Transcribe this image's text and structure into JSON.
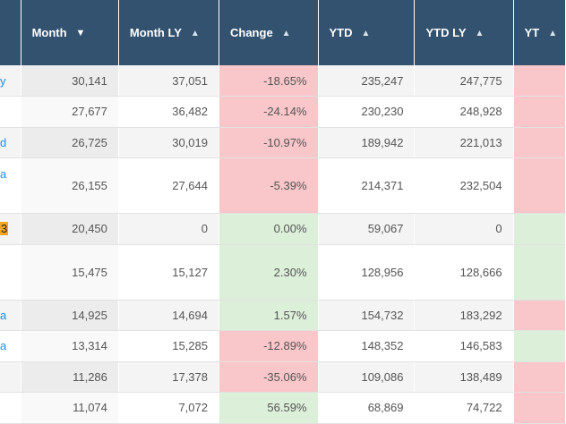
{
  "columns": [
    {
      "key": "name",
      "label": "",
      "arrow": ""
    },
    {
      "key": "month",
      "label": "Month",
      "arrow": "▼"
    },
    {
      "key": "month_ly",
      "label": "Month LY",
      "arrow": "▲"
    },
    {
      "key": "change",
      "label": "Change",
      "arrow": "▲"
    },
    {
      "key": "ytd",
      "label": "YTD",
      "arrow": "▲"
    },
    {
      "key": "ytd_ly",
      "label": "YTD LY",
      "arrow": "▲"
    },
    {
      "key": "ytd_change",
      "label": "YT",
      "arrow": "▲"
    }
  ],
  "rows": [
    {
      "name": "y",
      "month": "30,141",
      "month_ly": "37,051",
      "change": "-18.65%",
      "ytd": "235,247",
      "ytd_ly": "247,775",
      "change_dir": "neg",
      "ytd_dir": "neg"
    },
    {
      "name": "",
      "month": "27,677",
      "month_ly": "36,482",
      "change": "-24.14%",
      "ytd": "230,230",
      "ytd_ly": "248,928",
      "change_dir": "neg",
      "ytd_dir": "neg"
    },
    {
      "name": "d",
      "month": "26,725",
      "month_ly": "30,019",
      "change": "-10.97%",
      "ytd": "189,942",
      "ytd_ly": "221,013",
      "change_dir": "neg",
      "ytd_dir": "neg"
    },
    {
      "name": "a",
      "month": "26,155",
      "month_ly": "27,644",
      "change": "-5.39%",
      "ytd": "214,371",
      "ytd_ly": "232,504",
      "change_dir": "neg",
      "ytd_dir": "neg",
      "tall": true,
      "name_top": true
    },
    {
      "name": "3",
      "month": "20,450",
      "month_ly": "0",
      "change": "0.00%",
      "ytd": "59,067",
      "ytd_ly": "0",
      "change_dir": "pos",
      "ytd_dir": "pos",
      "badge": true
    },
    {
      "name": "",
      "month": "15,475",
      "month_ly": "15,127",
      "change": "2.30%",
      "ytd": "128,956",
      "ytd_ly": "128,666",
      "change_dir": "pos",
      "ytd_dir": "pos",
      "tall": true
    },
    {
      "name": "a",
      "month": "14,925",
      "month_ly": "14,694",
      "change": "1.57%",
      "ytd": "154,732",
      "ytd_ly": "183,292",
      "change_dir": "pos",
      "ytd_dir": "neg"
    },
    {
      "name": "a",
      "month": "13,314",
      "month_ly": "15,285",
      "change": "-12.89%",
      "ytd": "148,352",
      "ytd_ly": "146,583",
      "change_dir": "neg",
      "ytd_dir": "pos"
    },
    {
      "name": "",
      "month": "11,286",
      "month_ly": "17,378",
      "change": "-35.06%",
      "ytd": "109,086",
      "ytd_ly": "138,489",
      "change_dir": "neg",
      "ytd_dir": "neg"
    },
    {
      "name": "",
      "month": "11,074",
      "month_ly": "7,072",
      "change": "56.59%",
      "ytd": "68,869",
      "ytd_ly": "74,722",
      "change_dir": "pos",
      "ytd_dir": "neg"
    }
  ],
  "colors": {
    "header_bg": "#33526f",
    "neg": "#f9c6c9",
    "pos": "#dcefd9",
    "link": "#1a8fe0"
  }
}
